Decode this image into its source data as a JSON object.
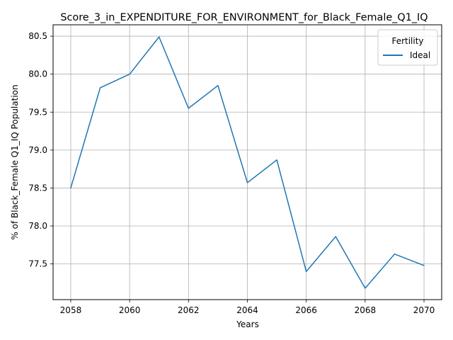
{
  "chart_data": {
    "type": "line",
    "title": "Score_3_in_EXPENDITURE_FOR_ENVIRONMENT_for_Black_Female_Q1_IQ",
    "xlabel": "Years",
    "ylabel": "% of Black_Female Q1_IQ Population",
    "x": [
      2058,
      2059,
      2060,
      2061,
      2062,
      2063,
      2064,
      2065,
      2066,
      2067,
      2068,
      2069,
      2070
    ],
    "xticks": [
      2058,
      2060,
      2062,
      2064,
      2066,
      2068,
      2070
    ],
    "yticks": [
      77.5,
      78.0,
      78.5,
      79.0,
      79.5,
      80.0,
      80.5
    ],
    "xtick_labels": [
      "2058",
      "2060",
      "2062",
      "2064",
      "2066",
      "2068",
      "2070"
    ],
    "ytick_labels": [
      "77.5",
      "78.0",
      "78.5",
      "79.0",
      "79.5",
      "80.0",
      "80.5"
    ],
    "xlim": [
      2057.4,
      2070.6
    ],
    "ylim": [
      77.03,
      80.65
    ],
    "grid": true,
    "legend": {
      "title": "Fertility",
      "position": "top-right"
    },
    "series": [
      {
        "name": "Ideal",
        "color": "#1f77b4",
        "values": [
          78.5,
          79.82,
          80.0,
          80.49,
          79.55,
          79.85,
          78.57,
          78.87,
          77.4,
          77.86,
          77.18,
          77.63,
          77.48
        ]
      }
    ]
  }
}
